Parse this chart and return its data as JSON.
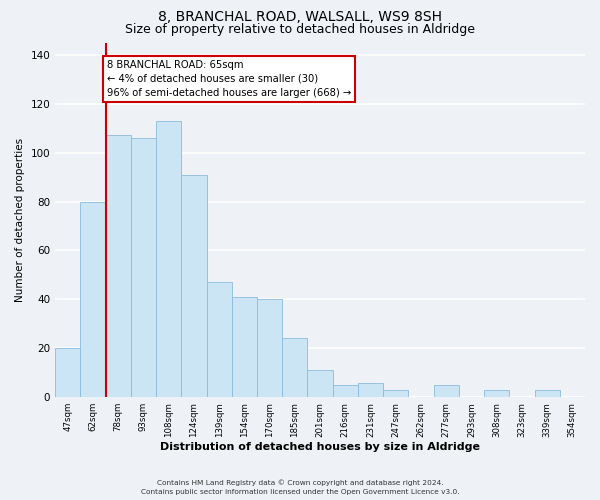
{
  "title": "8, BRANCHAL ROAD, WALSALL, WS9 8SH",
  "subtitle": "Size of property relative to detached houses in Aldridge",
  "xlabel": "Distribution of detached houses by size in Aldridge",
  "ylabel": "Number of detached properties",
  "footer_line1": "Contains HM Land Registry data © Crown copyright and database right 2024.",
  "footer_line2": "Contains public sector information licensed under the Open Government Licence v3.0.",
  "bin_labels": [
    "47sqm",
    "62sqm",
    "78sqm",
    "93sqm",
    "108sqm",
    "124sqm",
    "139sqm",
    "154sqm",
    "170sqm",
    "185sqm",
    "201sqm",
    "216sqm",
    "231sqm",
    "247sqm",
    "262sqm",
    "277sqm",
    "293sqm",
    "308sqm",
    "323sqm",
    "339sqm",
    "354sqm"
  ],
  "bar_heights": [
    20,
    80,
    107,
    106,
    113,
    91,
    47,
    41,
    40,
    24,
    11,
    5,
    6,
    3,
    0,
    5,
    0,
    3,
    0,
    3,
    0
  ],
  "bar_color": "#cce5f5",
  "bar_edge_color": "#8bbcdd",
  "highlight_line_color": "#cc0000",
  "annotation_text": "8 BRANCHAL ROAD: 65sqm\n← 4% of detached houses are smaller (30)\n96% of semi-detached houses are larger (668) →",
  "annotation_box_color": "#ffffff",
  "annotation_box_edge": "#cc0000",
  "ylim": [
    0,
    145
  ],
  "yticks": [
    0,
    20,
    40,
    60,
    80,
    100,
    120,
    140
  ],
  "background_color": "#eef2f7",
  "plot_bg_color": "#eef2f7",
  "grid_color": "#ffffff",
  "title_fontsize": 10,
  "subtitle_fontsize": 9
}
